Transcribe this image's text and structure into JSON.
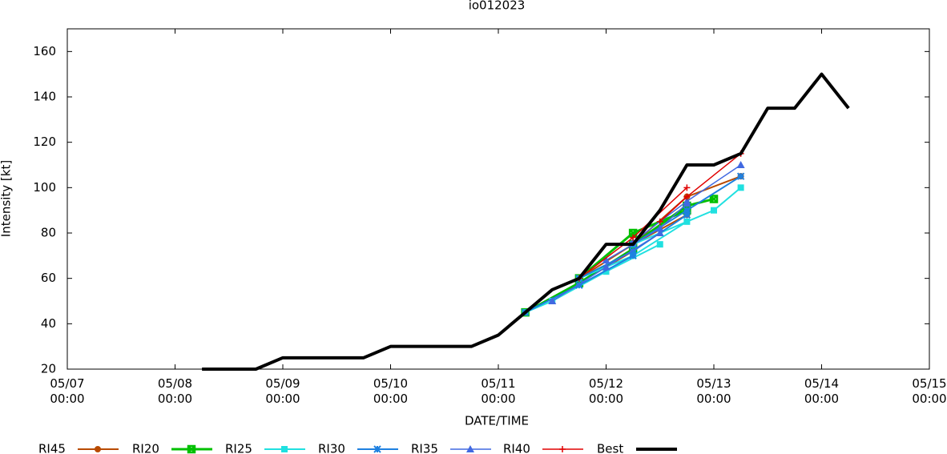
{
  "chart_data": {
    "type": "line",
    "title": "io012023",
    "xlabel": "DATE/TIME",
    "ylabel": "Intensity [kt]",
    "xlim": [
      "05/07 00:00",
      "05/15 00:00"
    ],
    "xticks": [
      "05/07 00:00",
      "05/08 00:00",
      "05/09 00:00",
      "05/10 00:00",
      "05/11 00:00",
      "05/12 00:00",
      "05/13 00:00",
      "05/14 00:00",
      "05/15 00:00"
    ],
    "ylim": [
      20,
      170
    ],
    "yticks": [
      20,
      40,
      60,
      80,
      100,
      120,
      140,
      160
    ],
    "series": [
      {
        "name": "RI45",
        "color": "#b84a00",
        "marker": "circle",
        "width": 2,
        "x": [
          "05/11 06:00",
          "05/11 18:00",
          "05/12 06:00",
          null,
          "05/11 18:00",
          "05/12 06:00",
          "05/12 18:00",
          null,
          "05/12 06:00",
          "05/12 18:00",
          "05/13 06:00"
        ],
        "values": [
          45,
          58,
          72,
          null,
          60,
          75,
          88,
          null,
          75,
          96,
          105
        ]
      },
      {
        "name": "RI20",
        "color": "#00c000",
        "marker": "xsquare",
        "width": 3,
        "x": [
          "05/11 06:00",
          "05/11 18:00",
          "05/12 06:00",
          null,
          "05/11 18:00",
          "05/12 06:00",
          "05/12 18:00",
          null,
          "05/12 06:00",
          "05/12 18:00",
          "05/13 00:00"
        ],
        "values": [
          45,
          58,
          73,
          null,
          60,
          80,
          90,
          null,
          75,
          92,
          95
        ]
      },
      {
        "name": "RI25",
        "color": "#20e0e0",
        "marker": "square",
        "width": 2,
        "x": [
          "05/11 06:00",
          "05/11 12:00",
          "05/12 00:00",
          "05/12 12:00",
          null,
          "05/11 18:00",
          "05/12 06:00",
          "05/12 18:00",
          null,
          "05/12 06:00",
          "05/13 00:00",
          "05/13 06:00"
        ],
        "values": [
          45,
          50,
          63,
          75,
          null,
          60,
          70,
          85,
          null,
          75,
          90,
          100
        ]
      },
      {
        "name": "RI30",
        "color": "#1e80e0",
        "marker": "star",
        "width": 2,
        "x": [
          "05/11 06:00",
          "05/11 18:00",
          "05/12 06:00",
          null,
          "05/11 18:00",
          "05/12 06:00",
          "05/12 18:00",
          null,
          "05/12 06:00",
          "05/12 18:00",
          "05/13 06:00"
        ],
        "values": [
          45,
          57,
          70,
          null,
          60,
          72,
          88,
          null,
          75,
          90,
          105
        ]
      },
      {
        "name": "RI35",
        "color": "#4169e1",
        "marker": "triangle",
        "width": 1.5,
        "x": [
          "05/11 12:00",
          "05/12 00:00",
          "05/12 12:00",
          null,
          "05/12 00:00",
          "05/12 12:00",
          "05/12 18:00",
          null,
          "05/12 06:00",
          "05/12 18:00",
          "05/13 06:00"
        ],
        "values": [
          50,
          65,
          80,
          null,
          68,
          82,
          93,
          null,
          76,
          94,
          110
        ]
      },
      {
        "name": "RI40",
        "color": "#e00000",
        "marker": "plus",
        "width": 1.5,
        "x": [
          "05/11 18:00",
          "05/12 06:00",
          "05/12 18:00",
          null,
          "05/12 12:00",
          "05/12 18:00",
          "05/13 06:00"
        ],
        "values": [
          60,
          78,
          100,
          null,
          85,
          96,
          115
        ]
      },
      {
        "name": "Best",
        "color": "#000000",
        "marker": "none",
        "width": 4,
        "x": [
          "05/08 06:00",
          "05/08 12:00",
          "05/08 18:00",
          "05/09 00:00",
          "05/09 06:00",
          "05/09 12:00",
          "05/09 18:00",
          "05/10 00:00",
          "05/10 06:00",
          "05/10 12:00",
          "05/10 18:00",
          "05/11 00:00",
          "05/11 06:00",
          "05/11 12:00",
          "05/11 18:00",
          "05/12 00:00",
          "05/12 06:00",
          "05/12 12:00",
          "05/12 18:00",
          "05/13 00:00",
          "05/13 06:00",
          "05/13 12:00",
          "05/13 18:00",
          "05/14 00:00",
          "05/14 06:00"
        ],
        "values": [
          20,
          20,
          20,
          25,
          25,
          25,
          25,
          30,
          30,
          30,
          30,
          35,
          45,
          55,
          60,
          75,
          75,
          90,
          110,
          110,
          115,
          135,
          135,
          150,
          135
        ]
      }
    ]
  }
}
